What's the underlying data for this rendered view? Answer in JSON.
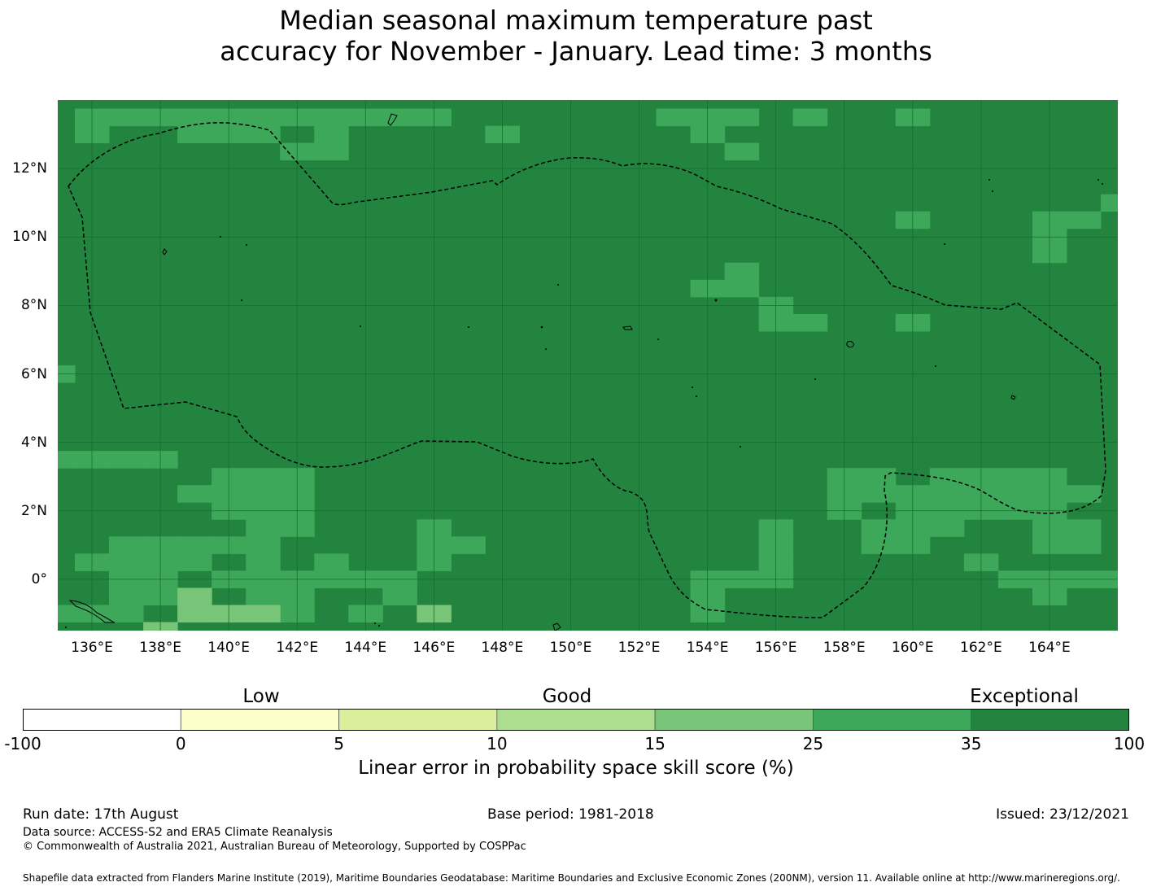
{
  "title": {
    "line1": "Median seasonal maximum temperature past",
    "line2": "accuracy for November - January. Lead time: 3 months"
  },
  "map": {
    "lon_range": [
      135,
      166
    ],
    "lat_range": [
      -1.5,
      14
    ],
    "x_ticks": [
      "136°E",
      "138°E",
      "140°E",
      "142°E",
      "144°E",
      "146°E",
      "148°E",
      "150°E",
      "152°E",
      "154°E",
      "156°E",
      "158°E",
      "160°E",
      "162°E",
      "164°E"
    ],
    "y_ticks": [
      "12°N",
      "10°N",
      "8°N",
      "6°N",
      "4°N",
      "2°N",
      "0°"
    ],
    "gridlines": true,
    "background_category": "exceptional",
    "colors": {
      "exceptional": "#23843f",
      "good_high": "#3ea85a",
      "good_mid": "#78c479",
      "grid": "#1a6a33"
    },
    "cells_good_high": [
      [
        136,
        13.5
      ],
      [
        137,
        13.5
      ],
      [
        138,
        13.5
      ],
      [
        136,
        13
      ],
      [
        139,
        13.5
      ],
      [
        140,
        13.5
      ],
      [
        141,
        13.5
      ],
      [
        142,
        13.5
      ],
      [
        143,
        13.5
      ],
      [
        144,
        13.5
      ],
      [
        145,
        13.5
      ],
      [
        146,
        13.5
      ],
      [
        139,
        13
      ],
      [
        140,
        13
      ],
      [
        141,
        13
      ],
      [
        143,
        13
      ],
      [
        142,
        12.5
      ],
      [
        143,
        12.5
      ],
      [
        148,
        13
      ],
      [
        153,
        13.5
      ],
      [
        154,
        13.5
      ],
      [
        155,
        13.5
      ],
      [
        154,
        13
      ],
      [
        155,
        12.5
      ],
      [
        157,
        13.5
      ],
      [
        160,
        13.5
      ],
      [
        160,
        10.5
      ],
      [
        164,
        10.5
      ],
      [
        165,
        10.5
      ],
      [
        166,
        11
      ],
      [
        164,
        10
      ],
      [
        164,
        9.5
      ],
      [
        155,
        9
      ],
      [
        154,
        8.5
      ],
      [
        155,
        8.5
      ],
      [
        156,
        8
      ],
      [
        156,
        7.5
      ],
      [
        157,
        7.5
      ],
      [
        160,
        7.5
      ],
      [
        135,
        6
      ],
      [
        135,
        3.5
      ],
      [
        136,
        3.5
      ],
      [
        137,
        3.5
      ],
      [
        138,
        3.5
      ],
      [
        140,
        3
      ],
      [
        141,
        3
      ],
      [
        142,
        3
      ],
      [
        140,
        2.5
      ],
      [
        141,
        2.5
      ],
      [
        142,
        2.5
      ],
      [
        139,
        2.5
      ],
      [
        140,
        2
      ],
      [
        141,
        2
      ],
      [
        142,
        2
      ],
      [
        141,
        1.5
      ],
      [
        142,
        1.5
      ],
      [
        146,
        1.5
      ],
      [
        146,
        1
      ],
      [
        147,
        1
      ],
      [
        146,
        0.5
      ],
      [
        137,
        1
      ],
      [
        138,
        1
      ],
      [
        139,
        1
      ],
      [
        140,
        1
      ],
      [
        141,
        1
      ],
      [
        136,
        0.5
      ],
      [
        137,
        0.5
      ],
      [
        138,
        0.5
      ],
      [
        139,
        0.5
      ],
      [
        141,
        0.5
      ],
      [
        143,
        0.5
      ],
      [
        137,
        0
      ],
      [
        138,
        0
      ],
      [
        140,
        0
      ],
      [
        141,
        0
      ],
      [
        142,
        0
      ],
      [
        143,
        0
      ],
      [
        144,
        0
      ],
      [
        145,
        0
      ],
      [
        137,
        -0.5
      ],
      [
        138,
        -0.5
      ],
      [
        141,
        -0.5
      ],
      [
        142,
        -0.5
      ],
      [
        145,
        -0.5
      ],
      [
        135,
        -1
      ],
      [
        136,
        -1
      ],
      [
        137,
        -1
      ],
      [
        139,
        -1
      ],
      [
        142,
        -1
      ],
      [
        144,
        -1
      ],
      [
        158,
        3
      ],
      [
        159,
        3
      ],
      [
        158,
        2.5
      ],
      [
        159,
        2.5
      ],
      [
        160,
        2.5
      ],
      [
        160,
        2
      ],
      [
        158,
        2
      ],
      [
        161,
        3
      ],
      [
        162,
        3
      ],
      [
        163,
        3
      ],
      [
        164,
        3
      ],
      [
        161,
        2.5
      ],
      [
        162,
        2.5
      ],
      [
        163,
        2.5
      ],
      [
        164,
        2.5
      ],
      [
        165,
        2.5
      ],
      [
        161,
        2
      ],
      [
        162,
        2
      ],
      [
        163,
        2
      ],
      [
        164,
        2
      ],
      [
        159,
        1.5
      ],
      [
        160,
        1.5
      ],
      [
        161,
        1.5
      ],
      [
        159,
        1
      ],
      [
        160,
        1
      ],
      [
        164,
        1.5
      ],
      [
        165,
        1.5
      ],
      [
        164,
        1
      ],
      [
        165,
        1
      ],
      [
        162,
        0.5
      ],
      [
        163,
        0
      ],
      [
        164,
        0
      ],
      [
        165,
        0
      ],
      [
        166,
        0
      ],
      [
        164,
        -0.5
      ],
      [
        156,
        1.5
      ],
      [
        156,
        1
      ],
      [
        156,
        0.5
      ],
      [
        156,
        0
      ],
      [
        154,
        0
      ],
      [
        155,
        0
      ],
      [
        154,
        -0.5
      ],
      [
        154,
        -1
      ]
    ],
    "cells_good_mid": [
      [
        139,
        -0.5
      ],
      [
        139,
        -1
      ],
      [
        140,
        -1
      ],
      [
        141,
        -1
      ],
      [
        146,
        -1
      ],
      [
        138,
        -1.5
      ]
    ]
  },
  "colorbar": {
    "category_labels": [
      "Low",
      "Good",
      "Exceptional"
    ],
    "segments": [
      {
        "from": "-100",
        "to": "0",
        "color": "#ffffff"
      },
      {
        "from": "0",
        "to": "5",
        "color": "#fefecb"
      },
      {
        "from": "5",
        "to": "10",
        "color": "#d9ef9b"
      },
      {
        "from": "10",
        "to": "15",
        "color": "#addd8e"
      },
      {
        "from": "15",
        "to": "25",
        "color": "#78c479"
      },
      {
        "from": "25",
        "to": "35",
        "color": "#3ea85a"
      },
      {
        "from": "35",
        "to": "100",
        "color": "#23843f"
      }
    ],
    "tick_labels": [
      "-100",
      "0",
      "5",
      "10",
      "15",
      "25",
      "35",
      "100"
    ],
    "label": "Linear error in probability space skill score (%)"
  },
  "footer": {
    "run_date": "Run date: 17th August",
    "base_period": "Base period: 1981-2018",
    "issued": "Issued: 23/12/2021",
    "data_source": "Data source: ACCESS-S2 and ERA5 Climate Reanalysis",
    "copyright": "© Commonwealth of Australia 2021, Australian Bureau of Meteorology, Supported by COSPPac",
    "shapefile": "Shapefile data extracted from Flanders Marine Institute (2019), Maritime Boundaries Geodatabase: Maritime Boundaries and Exclusive Economic Zones (200NM), version 11. Available online at http://www.marineregions.org/."
  }
}
